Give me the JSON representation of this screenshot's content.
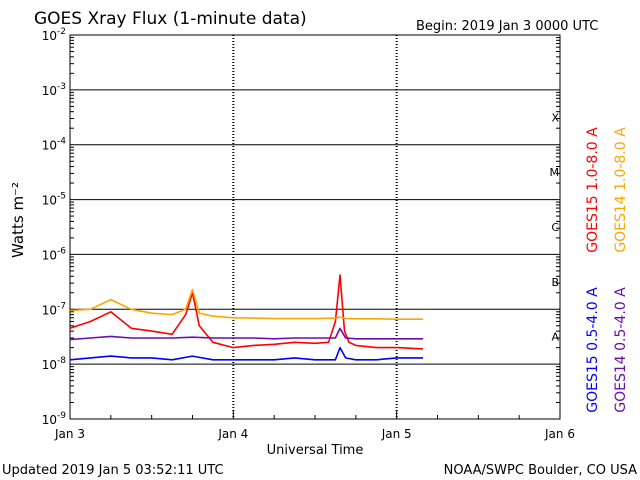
{
  "header": {
    "title": "GOES Xray Flux (1-minute data)",
    "begin": "Begin:  2019 Jan 3 0000 UTC"
  },
  "footer": {
    "updated": "Updated 2019 Jan  5 03:52:11 UTC",
    "credit": "NOAA/SWPC Boulder, CO USA"
  },
  "chart_data": {
    "type": "line",
    "title": "GOES Xray Flux (1-minute data)",
    "xlabel": "Universal Time",
    "ylabel": "Watts m⁻²",
    "y_scale": "log",
    "ylim": [
      1e-09,
      0.01
    ],
    "xlim": [
      "2019-01-03 00:00",
      "2019-01-06 00:00"
    ],
    "x_ticks": [
      {
        "label": "Jan 3",
        "value": "2019-01-03 00:00"
      },
      {
        "label": "Jan 4",
        "value": "2019-01-04 00:00"
      },
      {
        "label": "Jan 5",
        "value": "2019-01-05 00:00"
      },
      {
        "label": "Jan 6",
        "value": "2019-01-06 00:00"
      }
    ],
    "y_ticks": [
      {
        "base": "10",
        "exp": "-2",
        "value": 0.01
      },
      {
        "base": "10",
        "exp": "-3",
        "value": 0.001
      },
      {
        "base": "10",
        "exp": "-4",
        "value": 0.0001
      },
      {
        "base": "10",
        "exp": "-5",
        "value": 1e-05
      },
      {
        "base": "10",
        "exp": "-6",
        "value": 1e-06
      },
      {
        "base": "10",
        "exp": "-7",
        "value": 1e-07
      },
      {
        "base": "10",
        "exp": "-8",
        "value": 1e-08
      },
      {
        "base": "10",
        "exp": "-9",
        "value": 1e-09
      }
    ],
    "flare_classes": [
      {
        "label": "X",
        "value": 0.0001
      },
      {
        "label": "M",
        "value": 1e-05
      },
      {
        "label": "C",
        "value": 1e-06
      },
      {
        "label": "B",
        "value": 1e-07
      },
      {
        "label": "A",
        "value": 1e-08
      }
    ],
    "grid": true,
    "legend": "right side, vertical",
    "series": [
      {
        "name": "GOES15 1.0-8.0 A",
        "color": "#ff0000",
        "x": [
          "2019-01-03 00:00",
          "2019-01-03 03:00",
          "2019-01-03 06:00",
          "2019-01-03 09:00",
          "2019-01-03 12:00",
          "2019-01-03 15:00",
          "2019-01-03 17:00",
          "2019-01-03 18:00",
          "2019-01-03 19:00",
          "2019-01-03 21:00",
          "2019-01-04 00:00",
          "2019-01-04 03:00",
          "2019-01-04 06:00",
          "2019-01-04 09:00",
          "2019-01-04 12:00",
          "2019-01-04 14:00",
          "2019-01-04 15:00",
          "2019-01-04 15:40",
          "2019-01-04 16:20",
          "2019-01-04 17:00",
          "2019-01-04 18:00",
          "2019-01-04 21:00",
          "2019-01-05 00:00",
          "2019-01-05 03:52"
        ],
        "y": [
          4.5e-08,
          6e-08,
          9e-08,
          4.5e-08,
          4e-08,
          3.5e-08,
          8e-08,
          2e-07,
          5e-08,
          2.5e-08,
          2e-08,
          2.2e-08,
          2.3e-08,
          2.5e-08,
          2.4e-08,
          2.5e-08,
          6e-08,
          4.2e-07,
          4e-08,
          2.5e-08,
          2.2e-08,
          2e-08,
          2e-08,
          1.9e-08
        ]
      },
      {
        "name": "GOES14 1.0-8.0 A",
        "color": "#ffa500",
        "x": [
          "2019-01-03 00:00",
          "2019-01-03 03:00",
          "2019-01-03 06:00",
          "2019-01-03 09:00",
          "2019-01-03 12:00",
          "2019-01-03 15:00",
          "2019-01-03 17:00",
          "2019-01-03 18:00",
          "2019-01-03 19:00",
          "2019-01-03 21:00",
          "2019-01-04 00:00",
          "2019-01-04 03:00",
          "2019-01-04 06:00",
          "2019-01-04 09:00",
          "2019-01-04 12:00",
          "2019-01-04 15:00",
          "2019-01-04 15:40",
          "2019-01-04 16:30",
          "2019-01-04 18:00",
          "2019-01-04 21:00",
          "2019-01-05 00:00",
          "2019-01-05 03:52"
        ],
        "y": [
          9.5e-08,
          1e-07,
          1.5e-07,
          1e-07,
          8.5e-08,
          8e-08,
          1e-07,
          2.3e-07,
          8.5e-08,
          7.5e-08,
          7e-08,
          6.9e-08,
          6.8e-08,
          6.8e-08,
          6.8e-08,
          6.9e-08,
          7.2e-08,
          6.8e-08,
          6.7e-08,
          6.7e-08,
          6.6e-08,
          6.6e-08
        ]
      },
      {
        "name": "GOES15 0.5-4.0 A",
        "color": "#0000ff",
        "x": [
          "2019-01-03 00:00",
          "2019-01-03 03:00",
          "2019-01-03 06:00",
          "2019-01-03 09:00",
          "2019-01-03 12:00",
          "2019-01-03 15:00",
          "2019-01-03 18:00",
          "2019-01-03 21:00",
          "2019-01-04 00:00",
          "2019-01-04 03:00",
          "2019-01-04 06:00",
          "2019-01-04 09:00",
          "2019-01-04 12:00",
          "2019-01-04 15:00",
          "2019-01-04 15:40",
          "2019-01-04 16:30",
          "2019-01-04 18:00",
          "2019-01-04 21:00",
          "2019-01-05 00:00",
          "2019-01-05 03:52"
        ],
        "y": [
          1.2e-08,
          1.3e-08,
          1.4e-08,
          1.3e-08,
          1.3e-08,
          1.2e-08,
          1.4e-08,
          1.2e-08,
          1.2e-08,
          1.2e-08,
          1.2e-08,
          1.3e-08,
          1.2e-08,
          1.2e-08,
          2e-08,
          1.3e-08,
          1.2e-08,
          1.2e-08,
          1.3e-08,
          1.3e-08
        ]
      },
      {
        "name": "GOES14 0.5-4.0 A",
        "color": "#6a0dad",
        "x": [
          "2019-01-03 00:00",
          "2019-01-03 03:00",
          "2019-01-03 06:00",
          "2019-01-03 09:00",
          "2019-01-03 12:00",
          "2019-01-03 15:00",
          "2019-01-03 18:00",
          "2019-01-03 21:00",
          "2019-01-04 00:00",
          "2019-01-04 03:00",
          "2019-01-04 06:00",
          "2019-01-04 09:00",
          "2019-01-04 12:00",
          "2019-01-04 15:00",
          "2019-01-04 15:40",
          "2019-01-04 16:30",
          "2019-01-04 18:00",
          "2019-01-04 21:00",
          "2019-01-05 00:00",
          "2019-01-05 03:52"
        ],
        "y": [
          2.8e-08,
          3e-08,
          3.2e-08,
          3e-08,
          3e-08,
          3e-08,
          3.1e-08,
          3e-08,
          3e-08,
          3e-08,
          2.9e-08,
          3e-08,
          3e-08,
          3e-08,
          4.5e-08,
          3e-08,
          2.9e-08,
          2.9e-08,
          2.9e-08,
          2.9e-08
        ]
      }
    ]
  }
}
